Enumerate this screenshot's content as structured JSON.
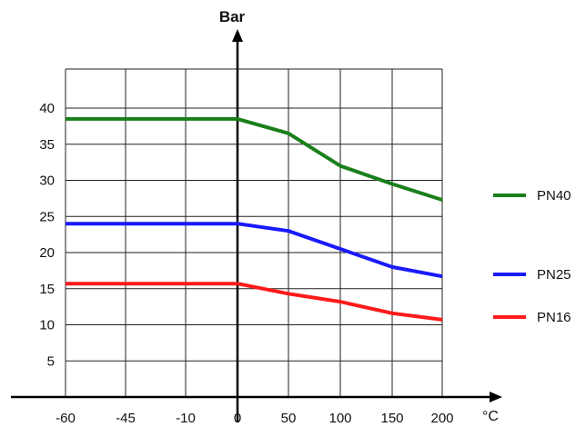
{
  "chart_data": {
    "type": "line",
    "ylabel": "Bar",
    "xlabel": "°C",
    "x_categories": [
      "-60",
      "-45",
      "-10",
      "0",
      "50",
      "100",
      "150",
      "200"
    ],
    "y_ticks": [
      "5",
      "10",
      "15",
      "20",
      "25",
      "30",
      "35",
      "40"
    ],
    "ylim": [
      0,
      45
    ],
    "grid": true,
    "legend_position": "right",
    "series": [
      {
        "name": "PN40",
        "color": "#1a7f1a",
        "points": [
          [
            "-60",
            38.5
          ],
          [
            "0",
            38.5
          ],
          [
            "50",
            36.5
          ],
          [
            "100",
            32
          ],
          [
            "150",
            29.5
          ],
          [
            "200",
            27.3
          ]
        ]
      },
      {
        "name": "PN25",
        "color": "#1a1aff",
        "points": [
          [
            "-60",
            24
          ],
          [
            "0",
            24
          ],
          [
            "50",
            23
          ],
          [
            "100",
            20.5
          ],
          [
            "150",
            18
          ],
          [
            "200",
            16.7
          ]
        ]
      },
      {
        "name": "PN16",
        "color": "#ff1a1a",
        "points": [
          [
            "-60",
            15.7
          ],
          [
            "0",
            15.7
          ],
          [
            "50",
            14.3
          ],
          [
            "100",
            13.2
          ],
          [
            "150",
            11.6
          ],
          [
            "200",
            10.7
          ]
        ]
      }
    ]
  }
}
